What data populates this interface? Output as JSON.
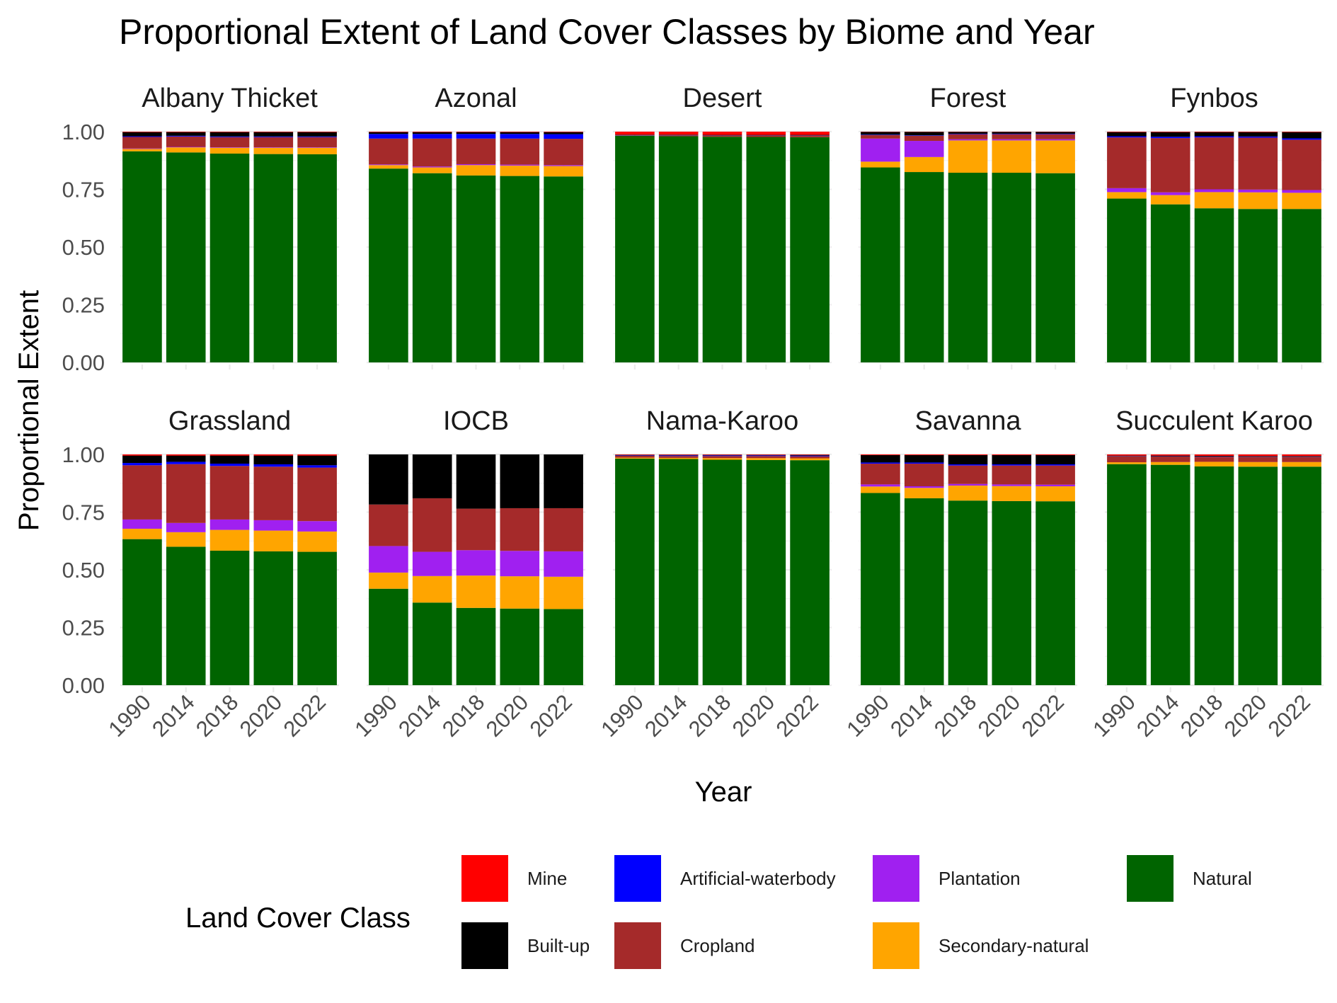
{
  "chart_data": {
    "type": "bar",
    "stacked": true,
    "faceted": true,
    "title": "Proportional Extent of Land Cover Classes by Biome and Year",
    "xlabel": "Year",
    "ylabel": "Proportional Extent",
    "ylim": [
      0,
      1
    ],
    "yticks": [
      "0.00",
      "0.25",
      "0.50",
      "0.75",
      "1.00"
    ],
    "categories": [
      "1990",
      "2014",
      "2018",
      "2020",
      "2022"
    ],
    "grid": true,
    "legend": {
      "title": "Land Cover Class",
      "position": "bottom",
      "items": [
        {
          "name": "Mine",
          "color": "#ff0000"
        },
        {
          "name": "Built-up",
          "color": "#000000"
        },
        {
          "name": "Artificial-waterbody",
          "color": "#0000ff"
        },
        {
          "name": "Cropland",
          "color": "#a52a2a"
        },
        {
          "name": "Plantation",
          "color": "#a020f0"
        },
        {
          "name": "Secondary-natural",
          "color": "#ffa500"
        },
        {
          "name": "Natural",
          "color": "#006400"
        }
      ]
    },
    "stack_order": [
      "Natural",
      "Secondary-natural",
      "Plantation",
      "Cropland",
      "Artificial-waterbody",
      "Built-up",
      "Mine"
    ],
    "facets": [
      {
        "name": "Albany Thicket",
        "series": {
          "Natural": [
            0.915,
            0.91,
            0.905,
            0.903,
            0.902
          ],
          "Secondary-natural": [
            0.01,
            0.022,
            0.025,
            0.027,
            0.028
          ],
          "Plantation": [
            0.002,
            0.002,
            0.002,
            0.002,
            0.002
          ],
          "Cropland": [
            0.05,
            0.045,
            0.044,
            0.044,
            0.044
          ],
          "Artificial-waterbody": [
            0.003,
            0.003,
            0.003,
            0.003,
            0.003
          ],
          "Built-up": [
            0.018,
            0.016,
            0.019,
            0.019,
            0.019
          ],
          "Mine": [
            0.002,
            0.002,
            0.002,
            0.002,
            0.002
          ]
        }
      },
      {
        "name": "Azonal",
        "series": {
          "Natural": [
            0.84,
            0.82,
            0.81,
            0.808,
            0.806
          ],
          "Secondary-natural": [
            0.015,
            0.025,
            0.045,
            0.045,
            0.045
          ],
          "Plantation": [
            0.003,
            0.004,
            0.004,
            0.004,
            0.004
          ],
          "Cropland": [
            0.112,
            0.121,
            0.111,
            0.113,
            0.114
          ],
          "Artificial-waterbody": [
            0.02,
            0.02,
            0.02,
            0.02,
            0.02
          ],
          "Built-up": [
            0.008,
            0.008,
            0.008,
            0.008,
            0.009
          ],
          "Mine": [
            0.002,
            0.002,
            0.002,
            0.002,
            0.002
          ]
        }
      },
      {
        "name": "Desert",
        "series": {
          "Natural": [
            0.982,
            0.98,
            0.978,
            0.977,
            0.976
          ],
          "Secondary-natural": [
            0.0,
            0.0,
            0.0,
            0.0,
            0.0
          ],
          "Plantation": [
            0.0,
            0.0,
            0.0,
            0.0,
            0.0
          ],
          "Cropland": [
            0.002,
            0.004,
            0.005,
            0.006,
            0.007
          ],
          "Artificial-waterbody": [
            0.001,
            0.001,
            0.001,
            0.001,
            0.001
          ],
          "Built-up": [
            0.002,
            0.002,
            0.002,
            0.002,
            0.002
          ],
          "Mine": [
            0.013,
            0.013,
            0.014,
            0.014,
            0.014
          ]
        }
      },
      {
        "name": "Forest",
        "series": {
          "Natural": [
            0.845,
            0.825,
            0.822,
            0.822,
            0.82
          ],
          "Secondary-natural": [
            0.025,
            0.065,
            0.14,
            0.14,
            0.142
          ],
          "Plantation": [
            0.1,
            0.07,
            0.005,
            0.005,
            0.005
          ],
          "Cropland": [
            0.015,
            0.022,
            0.022,
            0.022,
            0.022
          ],
          "Artificial-waterbody": [
            0.002,
            0.002,
            0.002,
            0.002,
            0.002
          ],
          "Built-up": [
            0.012,
            0.015,
            0.008,
            0.008,
            0.008
          ],
          "Mine": [
            0.001,
            0.001,
            0.001,
            0.001,
            0.001
          ]
        }
      },
      {
        "name": "Fynbos",
        "series": {
          "Natural": [
            0.71,
            0.685,
            0.668,
            0.665,
            0.665
          ],
          "Secondary-natural": [
            0.028,
            0.04,
            0.07,
            0.072,
            0.07
          ],
          "Plantation": [
            0.017,
            0.012,
            0.012,
            0.012,
            0.012
          ],
          "Cropland": [
            0.22,
            0.235,
            0.225,
            0.225,
            0.218
          ],
          "Artificial-waterbody": [
            0.005,
            0.006,
            0.005,
            0.005,
            0.006
          ],
          "Built-up": [
            0.018,
            0.02,
            0.018,
            0.019,
            0.027
          ],
          "Mine": [
            0.002,
            0.002,
            0.002,
            0.002,
            0.002
          ]
        }
      },
      {
        "name": "Grassland",
        "series": {
          "Natural": [
            0.633,
            0.6,
            0.583,
            0.58,
            0.578
          ],
          "Secondary-natural": [
            0.045,
            0.063,
            0.09,
            0.09,
            0.088
          ],
          "Plantation": [
            0.04,
            0.04,
            0.045,
            0.045,
            0.045
          ],
          "Cropland": [
            0.235,
            0.255,
            0.232,
            0.232,
            0.232
          ],
          "Artificial-waterbody": [
            0.01,
            0.01,
            0.01,
            0.01,
            0.01
          ],
          "Built-up": [
            0.032,
            0.027,
            0.035,
            0.038,
            0.042
          ],
          "Mine": [
            0.005,
            0.005,
            0.005,
            0.005,
            0.005
          ]
        }
      },
      {
        "name": "IOCB",
        "series": {
          "Natural": [
            0.418,
            0.358,
            0.335,
            0.332,
            0.33
          ],
          "Secondary-natural": [
            0.07,
            0.115,
            0.14,
            0.14,
            0.14
          ],
          "Plantation": [
            0.115,
            0.105,
            0.11,
            0.11,
            0.11
          ],
          "Cropland": [
            0.18,
            0.232,
            0.18,
            0.185,
            0.187
          ],
          "Artificial-waterbody": [
            0.0,
            0.0,
            0.0,
            0.0,
            0.0
          ],
          "Built-up": [
            0.217,
            0.19,
            0.235,
            0.233,
            0.233
          ],
          "Mine": [
            0.0,
            0.0,
            0.0,
            0.0,
            0.0
          ]
        }
      },
      {
        "name": "Nama-Karoo",
        "series": {
          "Natural": [
            0.982,
            0.98,
            0.977,
            0.976,
            0.975
          ],
          "Secondary-natural": [
            0.004,
            0.005,
            0.007,
            0.008,
            0.008
          ],
          "Plantation": [
            0.0,
            0.0,
            0.0,
            0.0,
            0.0
          ],
          "Cropland": [
            0.008,
            0.008,
            0.009,
            0.009,
            0.009
          ],
          "Artificial-waterbody": [
            0.002,
            0.003,
            0.003,
            0.003,
            0.003
          ],
          "Built-up": [
            0.002,
            0.002,
            0.002,
            0.002,
            0.003
          ],
          "Mine": [
            0.002,
            0.002,
            0.002,
            0.002,
            0.002
          ]
        }
      },
      {
        "name": "Savanna",
        "series": {
          "Natural": [
            0.833,
            0.81,
            0.8,
            0.798,
            0.797
          ],
          "Secondary-natural": [
            0.028,
            0.045,
            0.065,
            0.065,
            0.065
          ],
          "Plantation": [
            0.009,
            0.007,
            0.007,
            0.007,
            0.007
          ],
          "Cropland": [
            0.09,
            0.098,
            0.08,
            0.082,
            0.083
          ],
          "Artificial-waterbody": [
            0.005,
            0.005,
            0.005,
            0.005,
            0.005
          ],
          "Built-up": [
            0.032,
            0.032,
            0.04,
            0.04,
            0.04
          ],
          "Mine": [
            0.003,
            0.003,
            0.003,
            0.003,
            0.003
          ]
        }
      },
      {
        "name": "Succulent Karoo",
        "series": {
          "Natural": [
            0.958,
            0.955,
            0.948,
            0.947,
            0.947
          ],
          "Secondary-natural": [
            0.008,
            0.012,
            0.02,
            0.02,
            0.02
          ],
          "Plantation": [
            0.0,
            0.0,
            0.0,
            0.0,
            0.0
          ],
          "Cropland": [
            0.026,
            0.024,
            0.022,
            0.022,
            0.022
          ],
          "Artificial-waterbody": [
            0.001,
            0.001,
            0.001,
            0.001,
            0.001
          ],
          "Built-up": [
            0.002,
            0.003,
            0.003,
            0.003,
            0.003
          ],
          "Mine": [
            0.005,
            0.005,
            0.006,
            0.007,
            0.007
          ]
        }
      }
    ]
  }
}
